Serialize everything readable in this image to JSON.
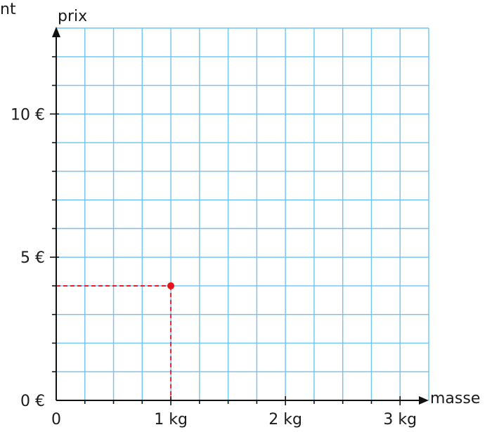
{
  "corner_fragment": "nt",
  "chart_data": {
    "type": "scatter",
    "xlabel": "masse",
    "ylabel": "prix",
    "xlim": [
      0,
      3.25
    ],
    "ylim": [
      0,
      13
    ],
    "x_ticks": [
      {
        "value": 0,
        "label": "0"
      },
      {
        "value": 1,
        "label": "1 kg"
      },
      {
        "value": 2,
        "label": "2 kg"
      },
      {
        "value": 3,
        "label": "3 kg"
      }
    ],
    "y_ticks": [
      {
        "value": 0,
        "label": "0 €"
      },
      {
        "value": 5,
        "label": "5 €"
      },
      {
        "value": 10,
        "label": "10 €"
      }
    ],
    "x_minor_step": 0.25,
    "y_minor_step": 1,
    "grid": true,
    "points": [
      {
        "x": 1,
        "y": 4,
        "color": "#e8141b",
        "dashed_projection": true
      }
    ],
    "colors": {
      "grid": "#6ec3f0",
      "axis": "#111111",
      "point": "#e8141b"
    }
  }
}
